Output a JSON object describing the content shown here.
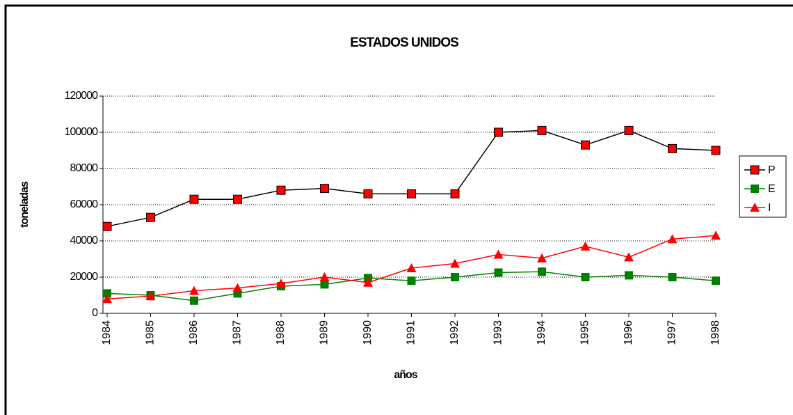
{
  "chart_data": {
    "type": "line",
    "title": "ESTADOS UNIDOS",
    "xlabel": "años",
    "ylabel": "toneladas",
    "categories": [
      "1984",
      "1985",
      "1986",
      "1987",
      "1988",
      "1989",
      "1990",
      "1991",
      "1992",
      "1993",
      "1994",
      "1995",
      "1996",
      "1997",
      "1998"
    ],
    "series": [
      {
        "name": "P",
        "color": "#000000",
        "marker": "square",
        "marker_color": "#ff0000",
        "values": [
          48000,
          53000,
          63000,
          63000,
          68000,
          69000,
          66000,
          66000,
          66000,
          100000,
          101000,
          93000,
          101000,
          91000,
          90000
        ]
      },
      {
        "name": "E",
        "color": "#008000",
        "marker": "square",
        "marker_color": "#008000",
        "values": [
          11000,
          10000,
          7000,
          11000,
          15000,
          16000,
          19500,
          18000,
          20000,
          22500,
          23000,
          20000,
          21000,
          20000,
          18000
        ]
      },
      {
        "name": "I",
        "color": "#ff0000",
        "marker": "triangle",
        "marker_color": "#ff0000",
        "values": [
          8000,
          9500,
          12500,
          14000,
          16500,
          20000,
          17000,
          25000,
          27500,
          32500,
          30500,
          37000,
          31000,
          41000,
          43000
        ]
      }
    ],
    "ylim": [
      0,
      120000
    ],
    "yticks": [
      0,
      20000,
      40000,
      60000,
      80000,
      100000,
      120000
    ],
    "grid": true,
    "legend": "right"
  }
}
